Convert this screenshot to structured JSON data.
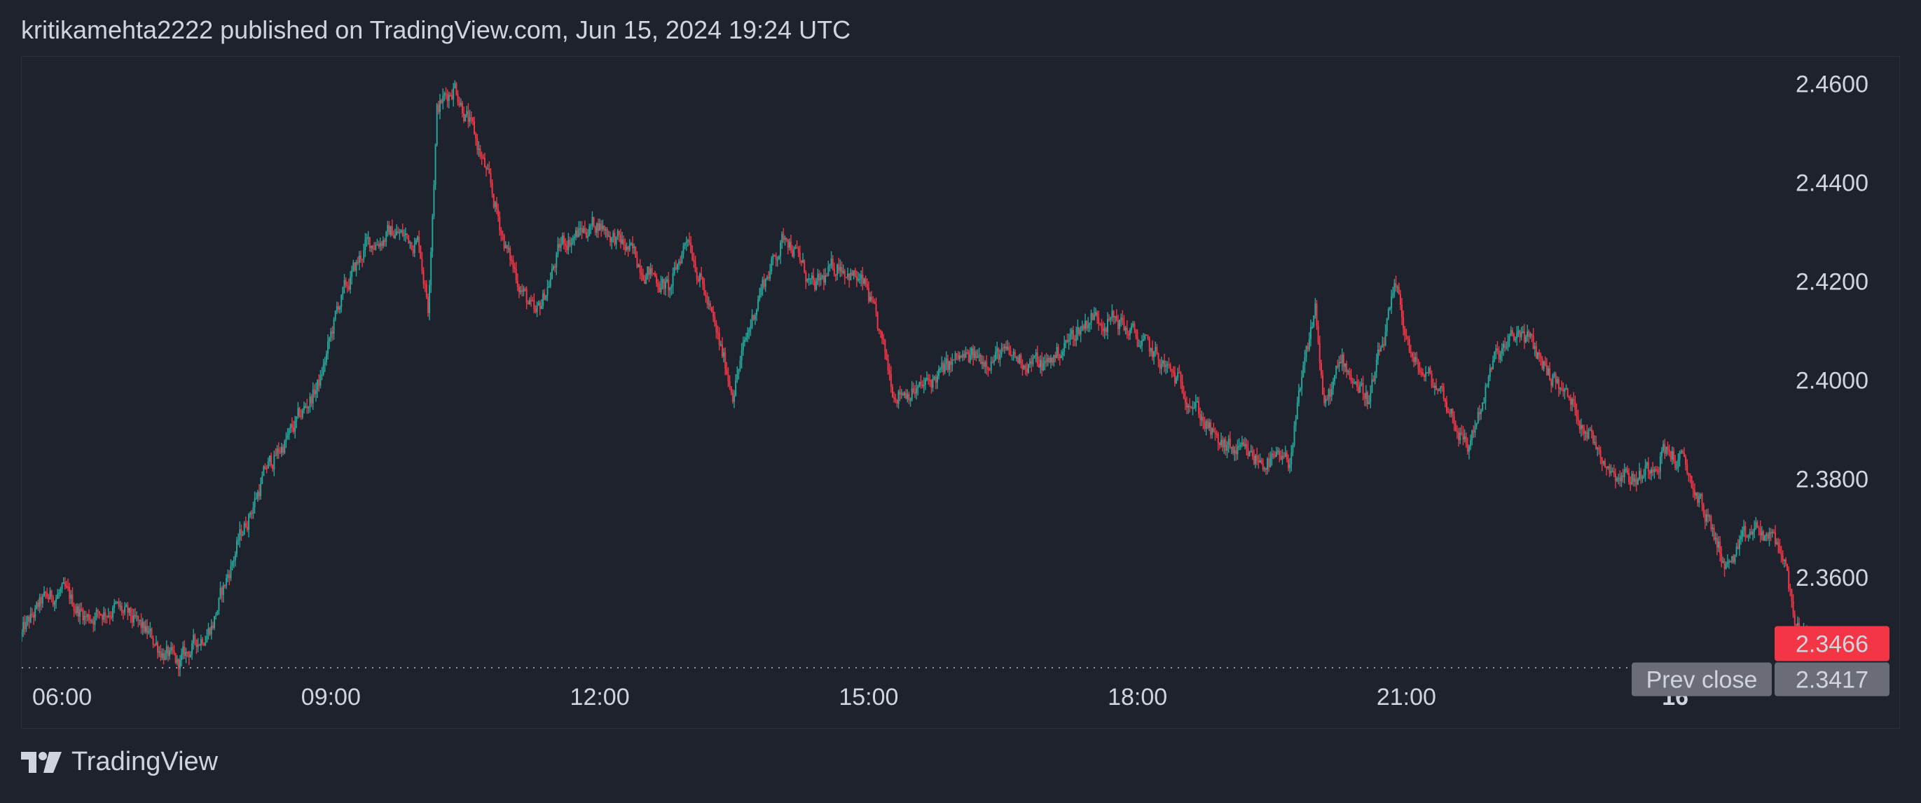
{
  "header": {
    "text": "kritikamehta2222 published on TradingView.com, Jun 15, 2024 19:24 UTC"
  },
  "footer": {
    "logo_text": "TradingView"
  },
  "colors": {
    "background": "#1e222d",
    "up": "#26a69a",
    "down": "#f23645",
    "text": "#d1d4dc",
    "prev_close_label_bg": "#6a6d78",
    "last_price_bg": "#f23645"
  },
  "chart_data": {
    "type": "candlestick",
    "y_ticks": [
      "2.4600",
      "2.4400",
      "2.4200",
      "2.4000",
      "2.3800",
      "2.3600"
    ],
    "ylim": [
      2.3295,
      2.4655
    ],
    "x_ticks": [
      {
        "label": "06:00",
        "hour": 6,
        "bold": false
      },
      {
        "label": "09:00",
        "hour": 9,
        "bold": false
      },
      {
        "label": "12:00",
        "hour": 12,
        "bold": false
      },
      {
        "label": "15:00",
        "hour": 15,
        "bold": false
      },
      {
        "label": "18:00",
        "hour": 18,
        "bold": false
      },
      {
        "label": "21:00",
        "hour": 21,
        "bold": false
      },
      {
        "label": "16",
        "hour": 24,
        "bold": true
      }
    ],
    "xlim_hours": [
      5.55,
      26.5
    ],
    "last_price": {
      "label": "2.3466",
      "value": 2.3466
    },
    "prev_close": {
      "label": "Prev close",
      "price_label": "2.3417",
      "value": 2.3417
    },
    "path_hours": [
      5.55,
      5.8,
      6.0,
      6.3,
      6.6,
      7.0,
      7.3,
      7.7,
      8.0,
      8.3,
      8.6,
      8.9,
      9.1,
      9.4,
      9.7,
      10.0,
      10.1,
      10.2,
      10.4,
      10.7,
      11.0,
      11.3,
      11.6,
      12.0,
      12.4,
      12.8,
      13.0,
      13.3,
      13.5,
      13.8,
      14.1,
      14.4,
      14.7,
      15.0,
      15.3,
      15.6,
      16.0,
      16.5,
      17.0,
      17.5,
      17.8,
      18.2,
      18.6,
      18.9,
      19.3,
      19.7,
      20.0,
      20.1,
      20.3,
      20.6,
      20.9,
      21.1,
      21.4,
      21.7,
      22.0,
      22.3,
      22.6,
      22.9,
      23.3,
      23.6,
      23.9,
      24.1,
      24.3,
      24.6,
      24.9,
      25.2,
      25.4,
      25.5
    ],
    "path_prices": [
      2.348,
      2.355,
      2.357,
      2.352,
      2.354,
      2.348,
      2.342,
      2.351,
      2.368,
      2.382,
      2.39,
      2.4,
      2.415,
      2.427,
      2.43,
      2.428,
      2.415,
      2.455,
      2.46,
      2.445,
      2.425,
      2.412,
      2.428,
      2.432,
      2.425,
      2.418,
      2.43,
      2.41,
      2.398,
      2.418,
      2.43,
      2.418,
      2.424,
      2.418,
      2.398,
      2.398,
      2.404,
      2.405,
      2.403,
      2.413,
      2.412,
      2.405,
      2.397,
      2.387,
      2.384,
      2.383,
      2.415,
      2.394,
      2.404,
      2.396,
      2.418,
      2.403,
      2.398,
      2.386,
      2.404,
      2.41,
      2.402,
      2.394,
      2.382,
      2.38,
      2.386,
      2.383,
      2.375,
      2.362,
      2.37,
      2.366,
      2.348,
      2.3466
    ]
  }
}
